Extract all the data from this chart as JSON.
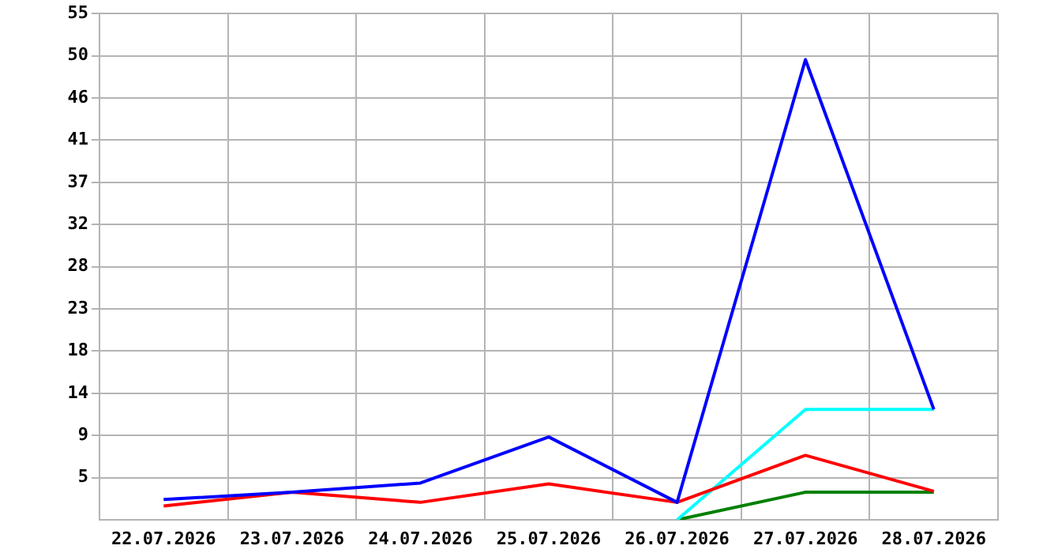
{
  "chart_data": {
    "type": "line",
    "categories": [
      "22.07.2026",
      "23.07.2026",
      "24.07.2026",
      "25.07.2026",
      "26.07.2026",
      "27.07.2026",
      "28.07.2026"
    ],
    "series": [
      {
        "color": "#0000ff",
        "values": [
          2.2,
          3.0,
          4.0,
          9.0,
          1.9,
          50.0,
          12.0
        ]
      },
      {
        "color": "#ff0000",
        "values": [
          1.5,
          3.0,
          1.9,
          3.9,
          1.9,
          7.0,
          3.1
        ]
      },
      {
        "color": "#00ffff",
        "values": [
          null,
          null,
          null,
          null,
          0,
          12.0,
          12.0
        ]
      },
      {
        "color": "#008000",
        "values": [
          null,
          null,
          null,
          null,
          0,
          3.0,
          3.0
        ]
      }
    ],
    "ylim": [
      0,
      55
    ],
    "yticks": [
      {
        "value": 4.583,
        "label": "5"
      },
      {
        "value": 9.167,
        "label": "9"
      },
      {
        "value": 13.75,
        "label": "14"
      },
      {
        "value": 18.333,
        "label": "18"
      },
      {
        "value": 22.917,
        "label": "23"
      },
      {
        "value": 27.5,
        "label": "28"
      },
      {
        "value": 32.083,
        "label": "32"
      },
      {
        "value": 36.667,
        "label": "37"
      },
      {
        "value": 41.25,
        "label": "41"
      },
      {
        "value": 45.833,
        "label": "46"
      },
      {
        "value": 50.417,
        "label": "50"
      },
      {
        "value": 55,
        "label": "55"
      }
    ],
    "grid": true,
    "legend": false,
    "marker": "none",
    "line_style": "solid"
  }
}
